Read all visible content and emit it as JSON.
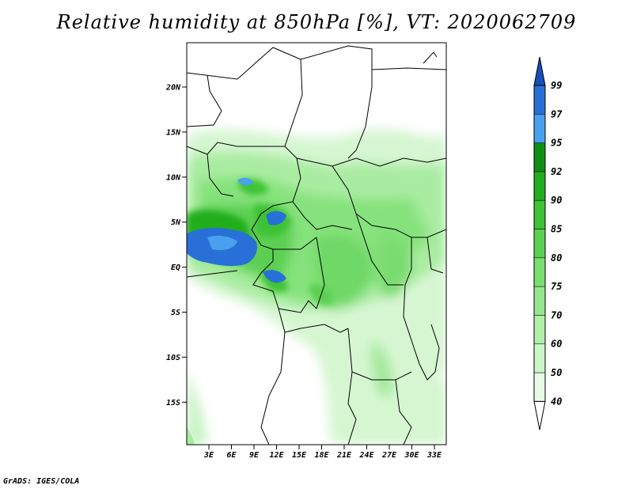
{
  "title": "Relative humidity at 850hPa [%], VT: 2020062709",
  "credit": "GrADS: IGES/COLA",
  "map": {
    "lat_labels": [
      "20N",
      "15N",
      "10N",
      "5N",
      "EQ",
      "5S",
      "10S",
      "15S"
    ],
    "lon_labels": [
      "3E",
      "6E",
      "9E",
      "12E",
      "15E",
      "18E",
      "21E",
      "24E",
      "27E",
      "30E",
      "33E"
    ]
  },
  "colorbar": {
    "levels": [
      "40",
      "50",
      "60",
      "70",
      "75",
      "80",
      "85",
      "90",
      "92",
      "95",
      "97",
      "99"
    ],
    "colors": [
      "#ffffff",
      "#e8fbe6",
      "#ccf5c8",
      "#b2efab",
      "#96e68e",
      "#7ade70",
      "#5cd052",
      "#3ec236",
      "#22ad1f",
      "#0e8f13",
      "#4aa0ee",
      "#2870d8",
      "#1450b8"
    ]
  }
}
